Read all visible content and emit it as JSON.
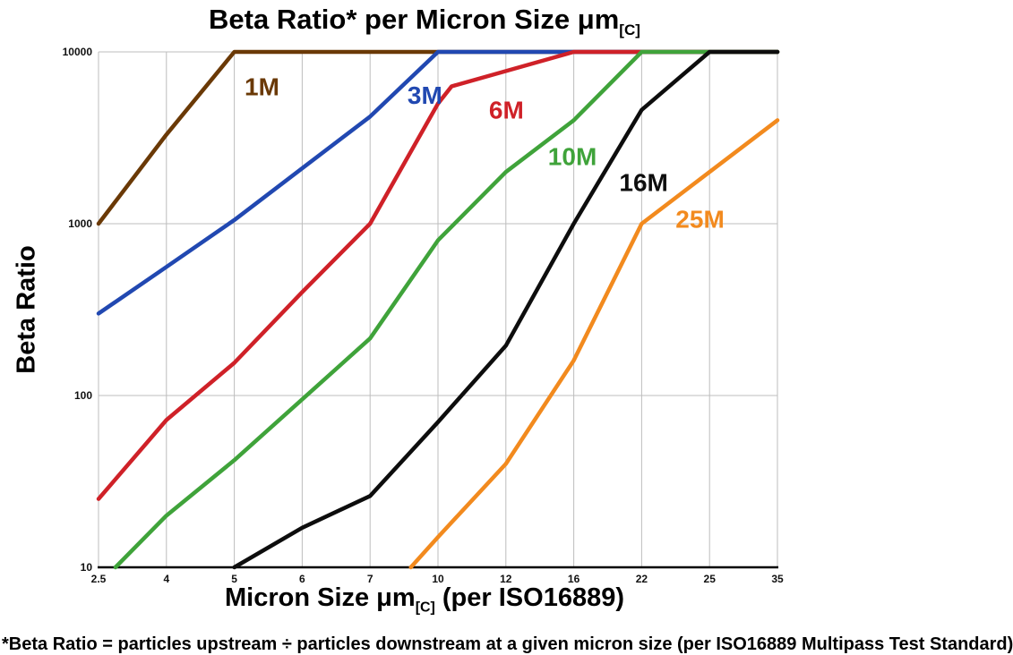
{
  "title": {
    "pre": "Beta Ratio* per Micron Size μm",
    "sub": "[C]"
  },
  "axes": {
    "y_title": "Beta Ratio",
    "x_title_pre": "Micron Size μm",
    "x_title_sub": "[C]",
    "x_title_post": " (per ISO16889)",
    "y_ticks": [
      "10000",
      "1000",
      "100",
      "10"
    ],
    "x_ticks": [
      "2.5",
      "4",
      "5",
      "6",
      "7",
      "10",
      "12",
      "16",
      "22",
      "25",
      "35"
    ]
  },
  "footnote": {
    "text": "*Beta Ratio = particles upstream ÷ particles downstream at a given micron size (per ISO16889 Multipass Test Standard)"
  },
  "colors": {
    "grid": "#bdbdbd",
    "axis": "#000000"
  },
  "chart_data": {
    "type": "line",
    "title": "Beta Ratio* per Micron Size μm[C]",
    "xlabel": "Micron Size μm[C] (per ISO16889)",
    "ylabel": "Beta Ratio",
    "x_scale": "categorical",
    "y_scale": "log",
    "ylim": [
      10,
      10000
    ],
    "categories": [
      2.5,
      4,
      5,
      6,
      7,
      10,
      12,
      16,
      22,
      25,
      35
    ],
    "grid": {
      "vertical": "every-category",
      "horizontal": "decades-only"
    },
    "legend": "inline-labels-on-lines",
    "series": [
      {
        "name": "1M",
        "color": "#6a3906",
        "label_pos": {
          "xi": 2.15,
          "v": 5600
        },
        "points": [
          [
            0,
            1000
          ],
          [
            1,
            3300
          ],
          [
            2,
            10000
          ],
          [
            10,
            10000
          ]
        ]
      },
      {
        "name": "3M",
        "color": "#2148b1",
        "label_pos": {
          "xi": 4.55,
          "v": 5000
        },
        "points": [
          [
            0,
            300
          ],
          [
            1,
            560
          ],
          [
            2,
            1050
          ],
          [
            3,
            2100
          ],
          [
            4,
            4200
          ],
          [
            5,
            10000
          ],
          [
            10,
            10000
          ]
        ]
      },
      {
        "name": "6M",
        "color": "#cf2128",
        "label_pos": {
          "xi": 5.75,
          "v": 4100
        },
        "points": [
          [
            0,
            25
          ],
          [
            1,
            72
          ],
          [
            2,
            155
          ],
          [
            3,
            400
          ],
          [
            4,
            1000
          ],
          [
            5,
            5000
          ],
          [
            5.2,
            6300
          ],
          [
            7,
            10000
          ],
          [
            10,
            10000
          ]
        ]
      },
      {
        "name": "10M",
        "color": "#3fa33a",
        "label_pos": {
          "xi": 6.62,
          "v": 2200
        },
        "points": [
          [
            0.25,
            10
          ],
          [
            1,
            20
          ],
          [
            2,
            42
          ],
          [
            3,
            95
          ],
          [
            4,
            215
          ],
          [
            5,
            800
          ],
          [
            6,
            2000
          ],
          [
            7,
            4000
          ],
          [
            8,
            10000
          ],
          [
            10,
            10000
          ]
        ]
      },
      {
        "name": "16M",
        "color": "#0d0d0d",
        "label_pos": {
          "xi": 7.67,
          "v": 1550
        },
        "points": [
          [
            2,
            10
          ],
          [
            3,
            17
          ],
          [
            4,
            26
          ],
          [
            5,
            70
          ],
          [
            6,
            195
          ],
          [
            7,
            1000
          ],
          [
            8,
            4600
          ],
          [
            9,
            10000
          ],
          [
            10,
            10000
          ]
        ]
      },
      {
        "name": "25M",
        "color": "#f28a1e",
        "label_pos": {
          "xi": 8.5,
          "v": 950
        },
        "points": [
          [
            4.6,
            10
          ],
          [
            5,
            15
          ],
          [
            6,
            40
          ],
          [
            7,
            160
          ],
          [
            8,
            1000
          ],
          [
            9,
            2000
          ],
          [
            10,
            4000
          ]
        ]
      }
    ]
  }
}
